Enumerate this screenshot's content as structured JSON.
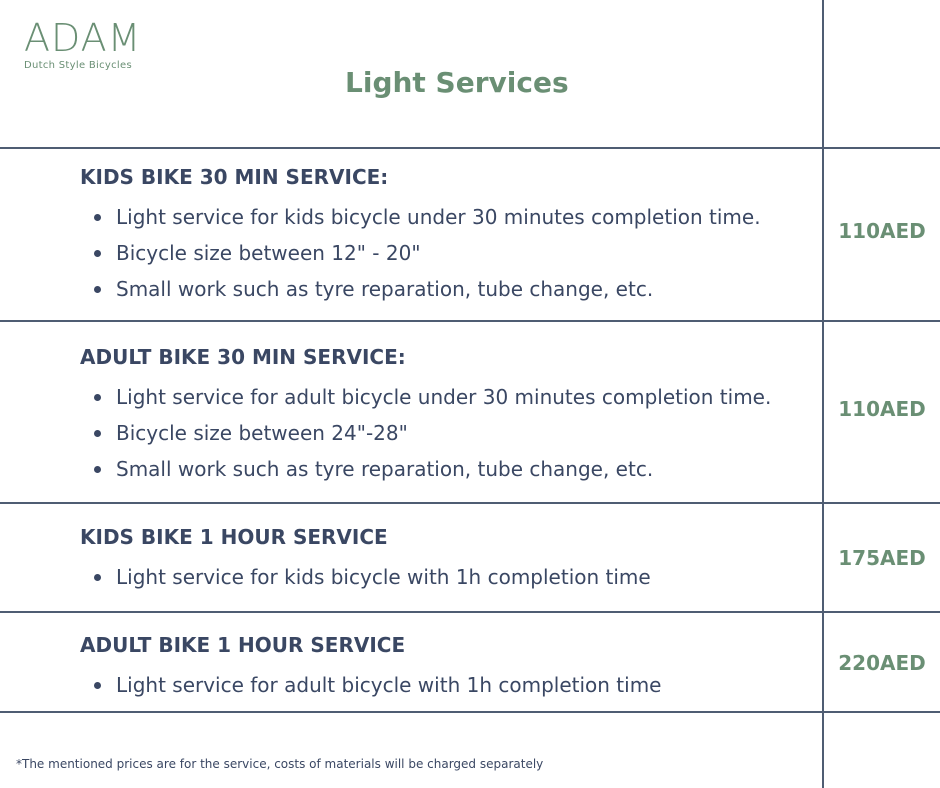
{
  "brand": {
    "name": "ADAM",
    "tagline": "Dutch Style Bicycles"
  },
  "page": {
    "title": "Light Services"
  },
  "colors": {
    "accent_green": "#6a8f74",
    "text_navy": "#3a4763",
    "rule": "#4f5d73"
  },
  "services": [
    {
      "title": "KIDS BIKE 30 MIN SERVICE:",
      "features": [
        "Light service for kids bicycle under 30 minutes completion time.",
        "Bicycle size between 12\" - 20\"",
        "Small work such as tyre reparation, tube change, etc."
      ],
      "price": "110AED"
    },
    {
      "title": "ADULT BIKE 30 MIN SERVICE:",
      "features": [
        "Light service for adult bicycle under 30 minutes completion time.",
        "Bicycle size between 24\"-28\"",
        "Small work such as tyre reparation, tube change, etc."
      ],
      "price": "110AED"
    },
    {
      "title": "KIDS BIKE 1 HOUR SERVICE",
      "features": [
        "Light service for kids bicycle with 1h completion time"
      ],
      "price": "175AED"
    },
    {
      "title": "ADULT BIKE 1 HOUR SERVICE",
      "features": [
        "Light service for adult bicycle with 1h completion time"
      ],
      "price": "220AED"
    }
  ],
  "footnote": "*The mentioned prices are for the service, costs of materials will be charged separately"
}
